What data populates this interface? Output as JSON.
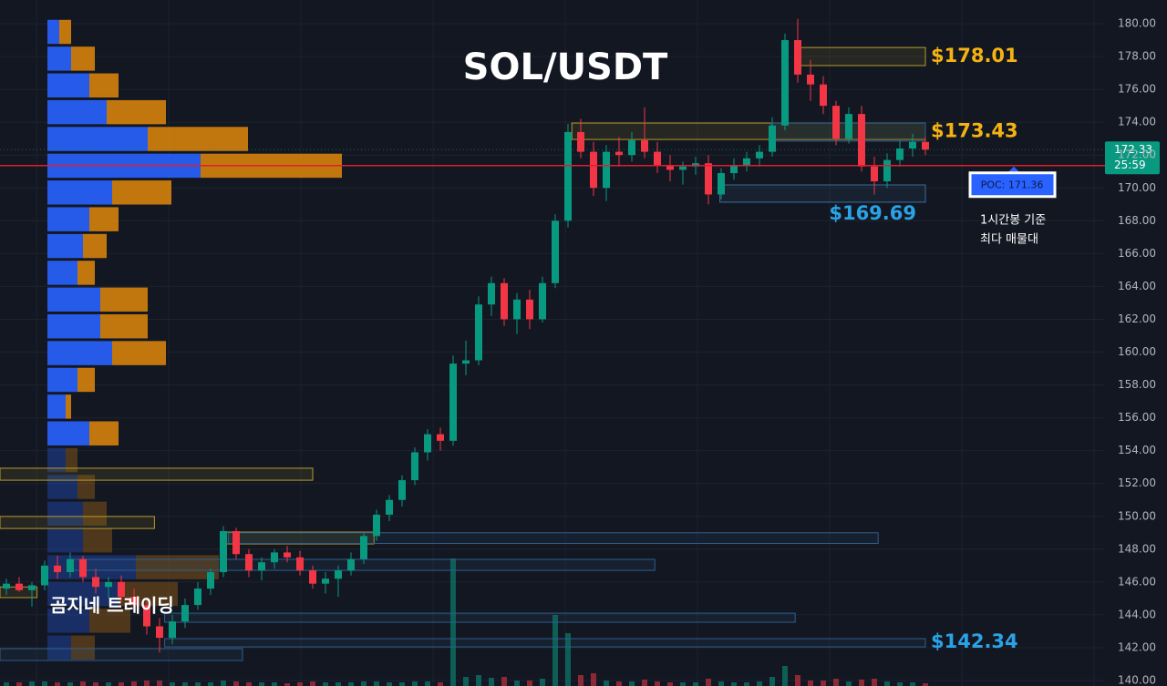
{
  "chart_data": {
    "type": "candlestick",
    "title": "SOL/USDT",
    "ylim": [
      140,
      180
    ],
    "yticks": [
      {
        "value": 140,
        "label": "140.00"
      },
      {
        "value": 142,
        "label": "142.00"
      },
      {
        "value": 144,
        "label": "144.00"
      },
      {
        "value": 146,
        "label": "146.00"
      },
      {
        "value": 148,
        "label": "148.00"
      },
      {
        "value": 150,
        "label": "150.00"
      },
      {
        "value": 152,
        "label": "152.00"
      },
      {
        "value": 154,
        "label": "154.00"
      },
      {
        "value": 156,
        "label": "156.00"
      },
      {
        "value": 158,
        "label": "158.00"
      },
      {
        "value": 160,
        "label": "160.00"
      },
      {
        "value": 162,
        "label": "162.00"
      },
      {
        "value": 164,
        "label": "164.00"
      },
      {
        "value": 166,
        "label": "166.00"
      },
      {
        "value": 168,
        "label": "168.00"
      },
      {
        "value": 170,
        "label": "170.00"
      },
      {
        "value": 172,
        "label": "172.00"
      },
      {
        "value": 174,
        "label": "174.00"
      },
      {
        "value": 176,
        "label": "176.00"
      },
      {
        "value": 178,
        "label": "178.00"
      },
      {
        "value": 180,
        "label": "180.00"
      }
    ],
    "grid": true,
    "up_color": "#089981",
    "down_color": "#f23645",
    "candles": [
      [
        145.6,
        146.2,
        145.2,
        145.9
      ],
      [
        145.9,
        146.3,
        145.4,
        145.5
      ],
      [
        145.5,
        146,
        144.5,
        145.8
      ],
      [
        145.8,
        147.3,
        145.5,
        147
      ],
      [
        147,
        147.6,
        146.2,
        146.6
      ],
      [
        146.6,
        147.8,
        146.3,
        147.4
      ],
      [
        147.4,
        147.6,
        146,
        146.3
      ],
      [
        146.3,
        146.8,
        145.3,
        145.7
      ],
      [
        145.7,
        146.3,
        145,
        146
      ],
      [
        146,
        146.4,
        144.8,
        145.1
      ],
      [
        145.1,
        145.6,
        144.2,
        144.6
      ],
      [
        144.6,
        145,
        142.8,
        143.3
      ],
      [
        143.3,
        143.8,
        141.7,
        142.6
      ],
      [
        142.6,
        144,
        142.2,
        143.6
      ],
      [
        143.6,
        145,
        143.2,
        144.6
      ],
      [
        144.6,
        146,
        144.3,
        145.6
      ],
      [
        145.6,
        146.8,
        145.2,
        146.6
      ],
      [
        146.6,
        149.4,
        146.3,
        149.1
      ],
      [
        149.1,
        149.3,
        147.4,
        147.7
      ],
      [
        147.7,
        148,
        146.3,
        146.7
      ],
      [
        146.7,
        147.5,
        146.1,
        147.2
      ],
      [
        147.2,
        148,
        146.8,
        147.8
      ],
      [
        147.8,
        148.2,
        147.2,
        147.5
      ],
      [
        147.5,
        147.9,
        146.4,
        146.7
      ],
      [
        146.7,
        147,
        145.6,
        145.9
      ],
      [
        145.9,
        146.6,
        145.3,
        146.2
      ],
      [
        146.2,
        147,
        145.1,
        146.7
      ],
      [
        146.7,
        147.8,
        146.4,
        147.4
      ],
      [
        147.4,
        149,
        147.1,
        148.8
      ],
      [
        148.8,
        150.4,
        148.5,
        150.1
      ],
      [
        150.1,
        151.3,
        149.7,
        151
      ],
      [
        151,
        152.5,
        150.6,
        152.2
      ],
      [
        152.2,
        154.2,
        151.9,
        153.9
      ],
      [
        153.9,
        155.3,
        153.4,
        155
      ],
      [
        155,
        155.4,
        154,
        154.6
      ],
      [
        154.6,
        159.8,
        154.3,
        159.3
      ],
      [
        159.3,
        160.7,
        158.6,
        159.5
      ],
      [
        159.5,
        163.4,
        159.2,
        162.9
      ],
      [
        162.9,
        164.6,
        162.2,
        164.2
      ],
      [
        164.2,
        164.5,
        161.6,
        162
      ],
      [
        162,
        163.6,
        161.1,
        163.2
      ],
      [
        163.2,
        163.8,
        161.4,
        162
      ],
      [
        162,
        164.6,
        161.8,
        164.2
      ],
      [
        164.2,
        168.4,
        163.9,
        168
      ],
      [
        168,
        173.9,
        167.6,
        173.4
      ],
      [
        173.4,
        174.2,
        171.8,
        172.2
      ],
      [
        172.2,
        172.8,
        169.5,
        170
      ],
      [
        170,
        172.6,
        169.2,
        172.2
      ],
      [
        172.2,
        173.1,
        171.3,
        172
      ],
      [
        172,
        173.4,
        171.6,
        172.9
      ],
      [
        172.9,
        174.9,
        171.8,
        172.2
      ],
      [
        172.2,
        172.8,
        170.9,
        171.4
      ],
      [
        171.4,
        172,
        170.4,
        171.1
      ],
      [
        171.1,
        171.6,
        170.2,
        171.3
      ],
      [
        171.3,
        171.9,
        170.8,
        171.5
      ],
      [
        171.5,
        172,
        169,
        169.6
      ],
      [
        169.6,
        171.2,
        169.3,
        170.9
      ],
      [
        170.9,
        171.8,
        170.5,
        171.4
      ],
      [
        171.4,
        172.2,
        171,
        171.8
      ],
      [
        171.8,
        172.6,
        171.3,
        172.2
      ],
      [
        172.2,
        174.3,
        171.9,
        173.8
      ],
      [
        173.8,
        179.4,
        173.5,
        179
      ],
      [
        179,
        180.3,
        176.4,
        176.9
      ],
      [
        176.9,
        177.8,
        175.3,
        176.3
      ],
      [
        176.3,
        176.8,
        174.5,
        175
      ],
      [
        175,
        175.3,
        172.6,
        173
      ],
      [
        173,
        174.9,
        172.7,
        174.5
      ],
      [
        174.5,
        175,
        171,
        171.3
      ],
      [
        171.3,
        171.9,
        169.6,
        170.4
      ],
      [
        170.4,
        172.1,
        170,
        171.7
      ],
      [
        171.7,
        172.9,
        171.3,
        172.4
      ],
      [
        172.4,
        173.3,
        171.9,
        172.8
      ],
      [
        172.8,
        173.1,
        172,
        172.33
      ]
    ],
    "volume": [
      4,
      4,
      5,
      5,
      4,
      4,
      5,
      4,
      4,
      4,
      5,
      6,
      6,
      4,
      4,
      4,
      4,
      6,
      5,
      4,
      4,
      4,
      3,
      4,
      5,
      4,
      4,
      4,
      5,
      5,
      4,
      4,
      5,
      5,
      4,
      140,
      10,
      12,
      9,
      10,
      6,
      6,
      8,
      78,
      58,
      12,
      14,
      6,
      5,
      5,
      7,
      5,
      4,
      4,
      4,
      8,
      5,
      4,
      4,
      5,
      10,
      22,
      12,
      6,
      6,
      8,
      5,
      7,
      8,
      5,
      4,
      4,
      3
    ],
    "volume_profile": {
      "prices": [
        179.5,
        177.87,
        176.24,
        174.61,
        172.98,
        171.35,
        169.72,
        168.09,
        166.46,
        164.83,
        163.2,
        161.57,
        159.94,
        158.31,
        156.68,
        155.05,
        153.42,
        151.79,
        150.16,
        148.53,
        146.9,
        145.27,
        143.64,
        142.01
      ],
      "buy": [
        13,
        26,
        46,
        65,
        110,
        168,
        71,
        46,
        39,
        33,
        58,
        58,
        71,
        33,
        20,
        46,
        20,
        33,
        39,
        39,
        97,
        78,
        46,
        26
      ],
      "sell": [
        13,
        26,
        32,
        65,
        110,
        155,
        65,
        32,
        26,
        19,
        52,
        52,
        59,
        19,
        6,
        32,
        13,
        19,
        26,
        32,
        91,
        65,
        45,
        26
      ],
      "buy_color": "#2962ff",
      "sell_color": "#d6820c",
      "value_area_low": 154.3
    },
    "zones": [
      {
        "x_start": 62,
        "x_end": 72,
        "top": 178.55,
        "bottom": 177.45,
        "color": "#b59a2a"
      },
      {
        "x_start": 44.3,
        "x_end": 72,
        "top": 173.95,
        "bottom": 172.95,
        "color": "#b59a2a"
      },
      {
        "x_start": 59.9,
        "x_end": 72,
        "top": 173.95,
        "bottom": 172.85,
        "color": "#2f5f8f"
      },
      {
        "x_start": 55.9,
        "x_end": 72,
        "top": 170.18,
        "bottom": 169.13,
        "color": "#3a6f9f"
      },
      {
        "x_start": -0.5,
        "x_end": 24,
        "top": 152.93,
        "bottom": 152.2,
        "color": "#b59a2a"
      },
      {
        "x_start": -0.5,
        "x_end": 11.6,
        "top": 149.99,
        "bottom": 149.26,
        "color": "#b59a2a"
      },
      {
        "x_start": -0.5,
        "x_end": 2.4,
        "top": 145.7,
        "bottom": 145.05,
        "color": "#b59a2a"
      },
      {
        "x_start": 17,
        "x_end": 28.8,
        "top": 149.04,
        "bottom": 148.32,
        "color": "#b59a2a"
      },
      {
        "x_start": 17.4,
        "x_end": 68.3,
        "top": 149.0,
        "bottom": 148.35,
        "color": "#2f5f8f"
      },
      {
        "x_start": 5.2,
        "x_end": 50.8,
        "top": 147.38,
        "bottom": 146.71,
        "color": "#2f5f8f"
      },
      {
        "x_start": 12.4,
        "x_end": 61.8,
        "top": 144.1,
        "bottom": 143.55,
        "color": "#2f5f8f"
      },
      {
        "x_start": 12.4,
        "x_end": 72,
        "top": 142.55,
        "bottom": 142.05,
        "color": "#2f5f8f"
      },
      {
        "x_start": -0.5,
        "x_end": 18.5,
        "top": 141.94,
        "bottom": 141.22,
        "color": "#2f5f8f"
      }
    ],
    "levels": {
      "values": [
        178.01,
        173.43,
        169.69,
        142.34
      ],
      "value_labels": [
        "$178.01",
        "$173.43",
        "$169.69",
        "$142.34"
      ],
      "placement": [
        "right",
        "right",
        "below",
        "right"
      ],
      "colors": [
        "#f5b312",
        "#f5b312",
        "#2aa3e6",
        "#2aa3e6"
      ]
    },
    "poc": {
      "value": 171.36,
      "label": "POC: 171.36",
      "color": "#e01e2e"
    },
    "last_price": 172.33,
    "countdown": "25:59",
    "annotation": [
      "1시간봉 기준",
      "최다 매물대"
    ],
    "watermark": "곰지네 트레이딩"
  }
}
